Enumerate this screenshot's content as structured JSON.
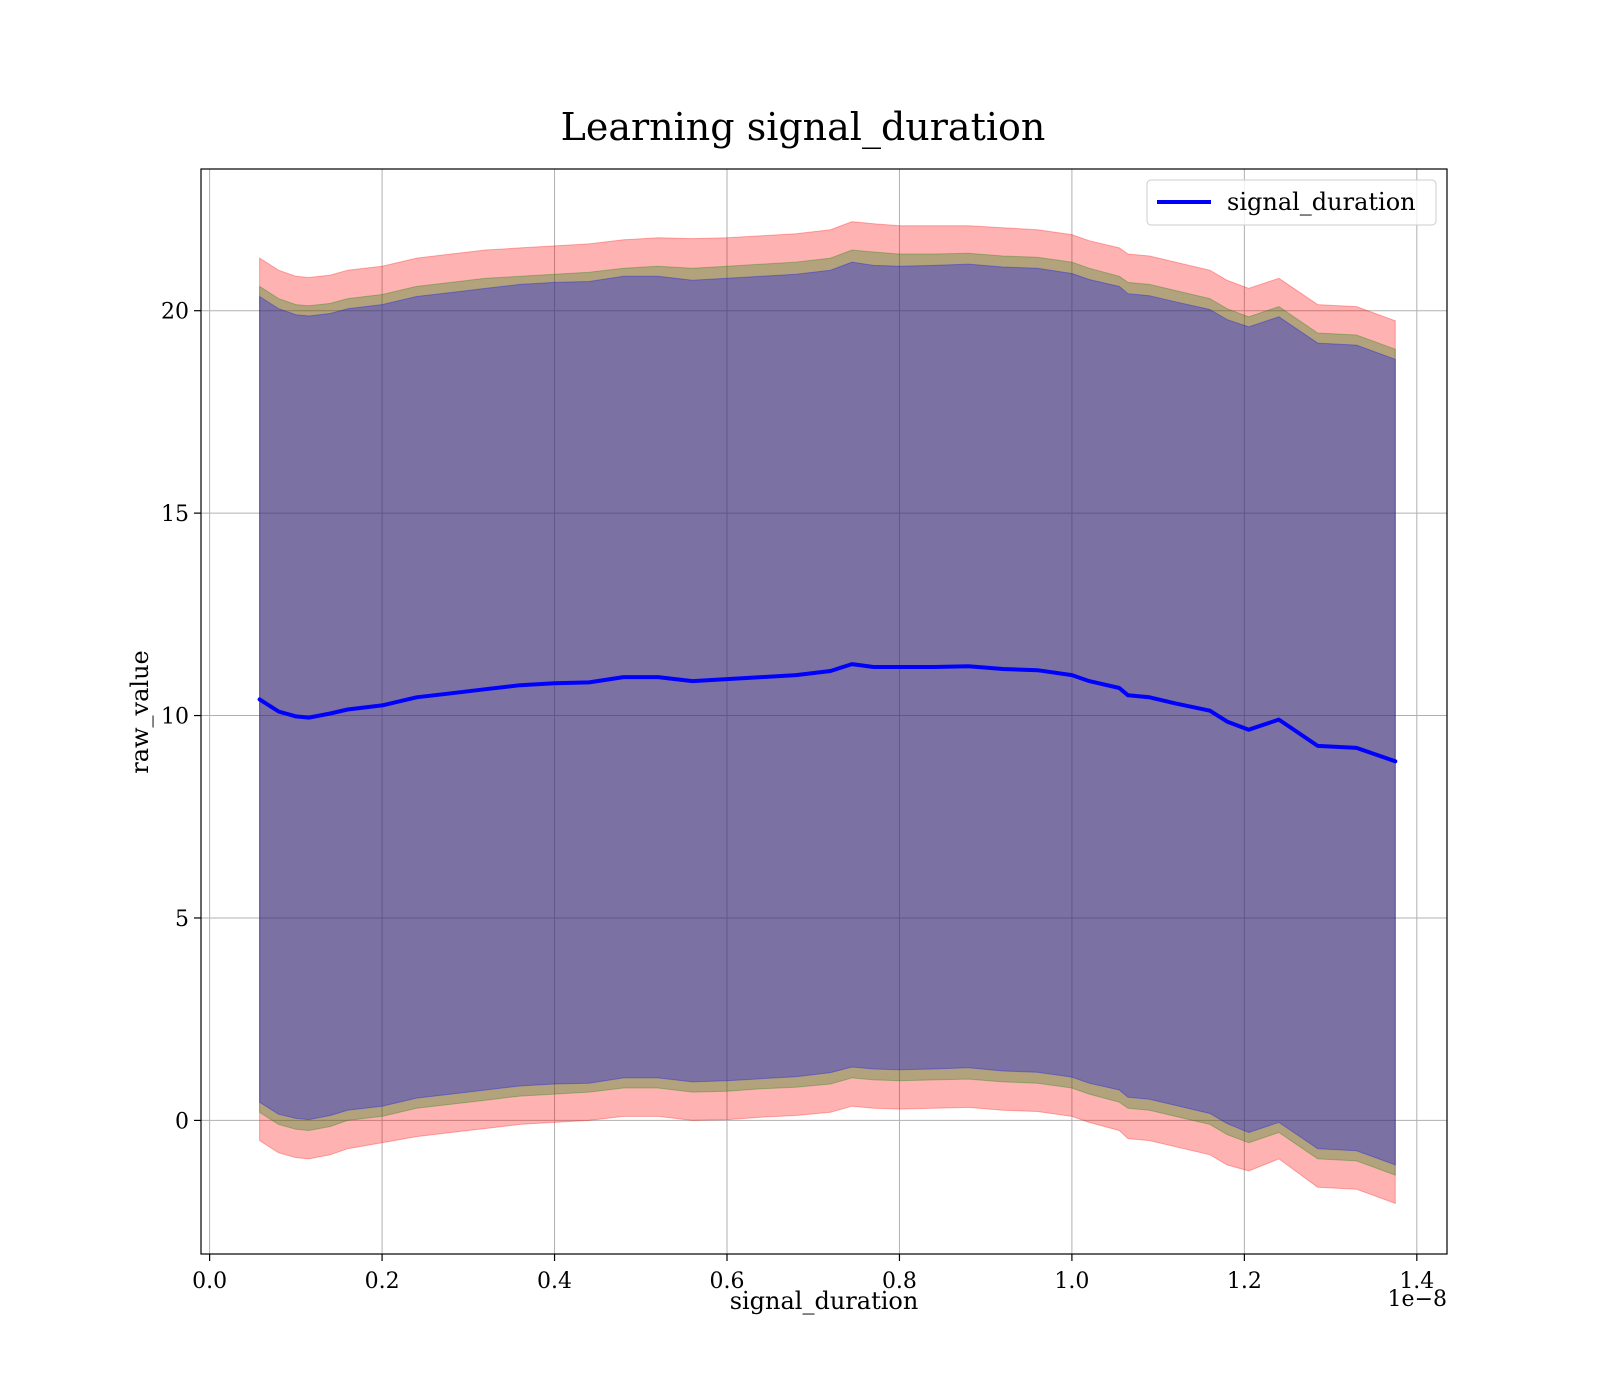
{
  "chart_data": {
    "type": "area",
    "title": "Learning signal_duration",
    "xlabel": "signal_duration",
    "ylabel": "raw_value",
    "x_offset_label": "1e−8",
    "xlim": [
      -0.01,
      1.435
    ],
    "ylim": [
      -3.3,
      23.5
    ],
    "xticks": [
      0.0,
      0.2,
      0.4,
      0.6,
      0.8,
      1.0,
      1.2,
      1.4
    ],
    "xtick_labels": [
      "0.0",
      "0.2",
      "0.4",
      "0.6",
      "0.8",
      "1.0",
      "1.2",
      "1.4"
    ],
    "yticks": [
      0,
      5,
      10,
      15,
      20
    ],
    "ytick_labels": [
      "0",
      "5",
      "10",
      "15",
      "20"
    ],
    "grid": true,
    "legend_position": "top-right",
    "legend": [
      {
        "label": "signal_duration",
        "color": "#0000ff"
      }
    ],
    "x": [
      0.058,
      0.08,
      0.1,
      0.115,
      0.14,
      0.16,
      0.2,
      0.24,
      0.28,
      0.32,
      0.36,
      0.4,
      0.44,
      0.48,
      0.52,
      0.56,
      0.6,
      0.64,
      0.68,
      0.72,
      0.745,
      0.77,
      0.8,
      0.84,
      0.88,
      0.92,
      0.96,
      1.0,
      1.02,
      1.055,
      1.065,
      1.09,
      1.12,
      1.16,
      1.18,
      1.205,
      1.24,
      1.285,
      1.33,
      1.375
    ],
    "series": [
      {
        "name": "signal_duration",
        "color": "#0000ff",
        "values": [
          10.4,
          10.1,
          9.98,
          9.95,
          10.05,
          10.15,
          10.25,
          10.45,
          10.55,
          10.65,
          10.75,
          10.8,
          10.82,
          10.95,
          10.95,
          10.85,
          10.9,
          10.95,
          11.0,
          11.1,
          11.27,
          11.2,
          11.2,
          11.2,
          11.22,
          11.15,
          11.12,
          11.0,
          10.85,
          10.68,
          10.5,
          10.45,
          10.3,
          10.12,
          9.85,
          9.65,
          9.9,
          9.25,
          9.2,
          8.87
        ]
      }
    ],
    "bands": [
      {
        "color": "#ff0000",
        "opacity": 0.3,
        "upper": [
          21.3,
          21.0,
          20.85,
          20.82,
          20.88,
          21.0,
          21.1,
          21.3,
          21.4,
          21.5,
          21.55,
          21.6,
          21.65,
          21.75,
          21.8,
          21.78,
          21.8,
          21.85,
          21.9,
          22.0,
          22.2,
          22.15,
          22.1,
          22.1,
          22.1,
          22.05,
          22.0,
          21.88,
          21.73,
          21.55,
          21.4,
          21.35,
          21.2,
          21.0,
          20.75,
          20.55,
          20.8,
          20.15,
          20.1,
          19.75
        ],
        "lower": [
          -0.5,
          -0.8,
          -0.92,
          -0.95,
          -0.85,
          -0.7,
          -0.55,
          -0.4,
          -0.3,
          -0.2,
          -0.1,
          -0.05,
          0.0,
          0.1,
          0.1,
          0.0,
          0.02,
          0.08,
          0.12,
          0.2,
          0.35,
          0.3,
          0.28,
          0.3,
          0.32,
          0.25,
          0.22,
          0.1,
          -0.05,
          -0.25,
          -0.45,
          -0.5,
          -0.65,
          -0.85,
          -1.1,
          -1.25,
          -0.95,
          -1.65,
          -1.7,
          -2.05
        ]
      },
      {
        "color": "#008000",
        "opacity": 0.3,
        "upper": [
          20.6,
          20.3,
          20.15,
          20.12,
          20.18,
          20.3,
          20.4,
          20.6,
          20.7,
          20.8,
          20.85,
          20.9,
          20.95,
          21.05,
          21.1,
          21.05,
          21.1,
          21.15,
          21.2,
          21.3,
          21.5,
          21.45,
          21.4,
          21.4,
          21.42,
          21.35,
          21.32,
          21.2,
          21.05,
          20.85,
          20.7,
          20.65,
          20.5,
          20.3,
          20.05,
          19.85,
          20.1,
          19.45,
          19.4,
          19.05
        ],
        "lower": [
          0.2,
          -0.1,
          -0.22,
          -0.25,
          -0.15,
          0.0,
          0.1,
          0.3,
          0.4,
          0.5,
          0.6,
          0.65,
          0.7,
          0.8,
          0.8,
          0.7,
          0.72,
          0.78,
          0.82,
          0.9,
          1.05,
          1.0,
          0.98,
          1.0,
          1.02,
          0.95,
          0.92,
          0.8,
          0.65,
          0.45,
          0.3,
          0.25,
          0.1,
          -0.1,
          -0.35,
          -0.55,
          -0.3,
          -0.95,
          -1.0,
          -1.35
        ]
      },
      {
        "color": "#0000ff",
        "opacity": 0.3,
        "upper": [
          20.35,
          20.05,
          19.9,
          19.87,
          19.93,
          20.05,
          20.15,
          20.35,
          20.45,
          20.55,
          20.65,
          20.7,
          20.72,
          20.85,
          20.85,
          20.75,
          20.8,
          20.85,
          20.9,
          21.0,
          21.2,
          21.12,
          21.1,
          21.12,
          21.15,
          21.08,
          21.05,
          20.92,
          20.77,
          20.6,
          20.42,
          20.37,
          20.22,
          20.03,
          19.78,
          19.6,
          19.85,
          19.2,
          19.15,
          18.8
        ],
        "lower": [
          0.45,
          0.15,
          0.05,
          0.02,
          0.12,
          0.25,
          0.35,
          0.55,
          0.65,
          0.75,
          0.85,
          0.9,
          0.92,
          1.05,
          1.05,
          0.95,
          0.98,
          1.03,
          1.08,
          1.18,
          1.32,
          1.27,
          1.25,
          1.27,
          1.3,
          1.22,
          1.19,
          1.07,
          0.92,
          0.75,
          0.57,
          0.52,
          0.37,
          0.17,
          -0.08,
          -0.3,
          -0.05,
          -0.7,
          -0.75,
          -1.1
        ]
      }
    ]
  }
}
